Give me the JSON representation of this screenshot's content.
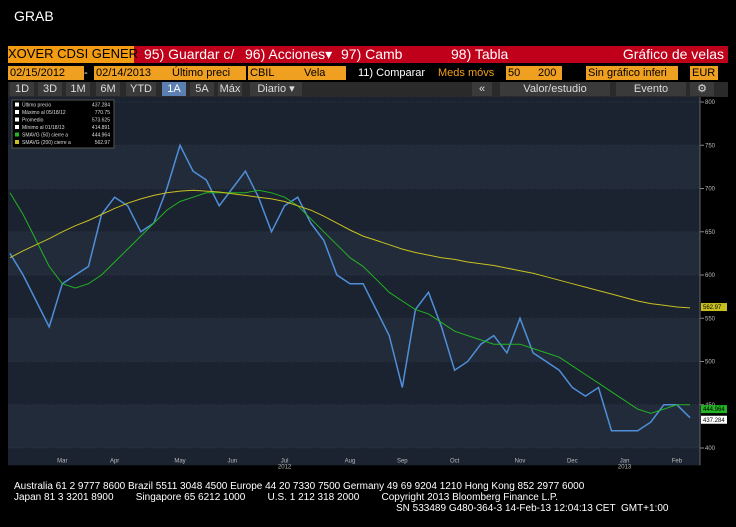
{
  "window_title": "GRAB",
  "toolbar": {
    "security": "XOVER CDSI GENER",
    "buttons": [
      "95) Guardar c/",
      "96) Acciones▾",
      "97) Camb",
      "98) Tabla"
    ],
    "chart_type": "Gráfico de velas"
  },
  "controls": {
    "start": "02/15/2012",
    "sep": "-",
    "end": "02/14/2013",
    "price": "Último preci",
    "field": "CBIL",
    "style": "Vela",
    "compare": "11) Comparar",
    "ma_label": "Meds móvs",
    "ma1": "50",
    "ma2": "200",
    "lower": "Sin gráfico inferi",
    "currency": "EUR"
  },
  "ranges": [
    "1D",
    "3D",
    "1M",
    "6M",
    "YTD",
    "1A",
    "5A",
    "Máx"
  ],
  "active_range": 5,
  "period": "Diario ▾",
  "tools": [
    "«",
    "Valor/estudio",
    "Evento",
    "⚙"
  ],
  "chart_data": {
    "type": "line",
    "categories": [
      null,
      null,
      null,
      null,
      "Mar",
      null,
      null,
      null,
      "Apr",
      null,
      null,
      null,
      null,
      "May",
      null,
      null,
      null,
      "Jun",
      null,
      null,
      null,
      "Jul",
      null,
      null,
      null,
      null,
      "Aug",
      null,
      null,
      null,
      "Sep",
      null,
      null,
      null,
      "Oct",
      null,
      null,
      null,
      null,
      "Nov",
      null,
      null,
      null,
      "Dec",
      null,
      null,
      null,
      "Jan",
      null,
      null,
      null,
      "Feb",
      null
    ],
    "year_labels": [
      null,
      null,
      null,
      null,
      null,
      null,
      null,
      null,
      null,
      null,
      null,
      null,
      null,
      null,
      null,
      null,
      null,
      null,
      null,
      null,
      null,
      "2012",
      null,
      null,
      null,
      null,
      null,
      null,
      null,
      null,
      null,
      null,
      null,
      null,
      null,
      null,
      null,
      null,
      null,
      null,
      null,
      null,
      null,
      null,
      null,
      null,
      null,
      "2013",
      null,
      null,
      null,
      null,
      null
    ],
    "ylim": [
      380,
      805
    ],
    "yticks": [
      400,
      450,
      500,
      550,
      600,
      650,
      700,
      750,
      800
    ],
    "grid": true,
    "series": [
      {
        "color": "#4f8fd8",
        "values": [
          625,
          600,
          570,
          540,
          590,
          600,
          610,
          670,
          690,
          680,
          650,
          660,
          700,
          750,
          720,
          710,
          680,
          700,
          720,
          690,
          650,
          680,
          690,
          660,
          640,
          600,
          590,
          590,
          560,
          530,
          470,
          560,
          580,
          540,
          490,
          500,
          520,
          530,
          510,
          550,
          510,
          500,
          490,
          470,
          460,
          470,
          420,
          420,
          420,
          430,
          450,
          450,
          435
        ]
      },
      {
        "color": "#22b422",
        "values": [
          695,
          670,
          640,
          610,
          590,
          585,
          590,
          600,
          615,
          630,
          645,
          660,
          675,
          685,
          690,
          695,
          695,
          695,
          695,
          698,
          695,
          690,
          680,
          665,
          650,
          635,
          620,
          610,
          595,
          580,
          570,
          560,
          555,
          545,
          535,
          530,
          525,
          520,
          520,
          520,
          515,
          510,
          505,
          495,
          485,
          475,
          465,
          455,
          445,
          440,
          445,
          450,
          450
        ]
      },
      {
        "color": "#c8c020",
        "values": [
          620,
          628,
          635,
          642,
          650,
          657,
          663,
          670,
          677,
          683,
          688,
          692,
          695,
          697,
          698,
          697,
          696,
          694,
          692,
          690,
          688,
          685,
          680,
          675,
          668,
          660,
          652,
          645,
          640,
          635,
          630,
          626,
          623,
          620,
          618,
          615,
          613,
          611,
          608,
          605,
          602,
          598,
          594,
          590,
          586,
          582,
          578,
          574,
          570,
          567,
          565,
          563,
          562
        ]
      }
    ],
    "stats": [
      {
        "label": "Último precio",
        "value": 437.284,
        "color": "#ffffff"
      },
      {
        "label": "Máximo al 05/18/12",
        "value": 770.75,
        "color": "#ffffff"
      },
      {
        "label": "Promedio",
        "value": 573.625,
        "color": "#ffffff"
      },
      {
        "label": "Mínimo al 01/18/13",
        "value": 414.891,
        "color": "#ffffff"
      },
      {
        "label": "SMAVG (50) cierre a",
        "value": 444.964,
        "color": "#22b422"
      },
      {
        "label": "SMAVG (200) cierre a",
        "value": 562.97,
        "color": "#c8c020"
      }
    ]
  },
  "footer": [
    "Australia 61 2 9777 8600 Brazil 5511 3048 4500 Europe 44 20 7330 7500 Germany 49 69 9204 1210 Hong Kong 852 2977 6000",
    "Japan 81 3 3201 8900        Singapore 65 6212 1000        U.S. 1 212 318 2000        Copyright 2013 Bloomberg Finance L.P.",
    "SN 533489 G480-364-3 14-Feb-13 12:04:13 CET  GMT+1:00"
  ]
}
